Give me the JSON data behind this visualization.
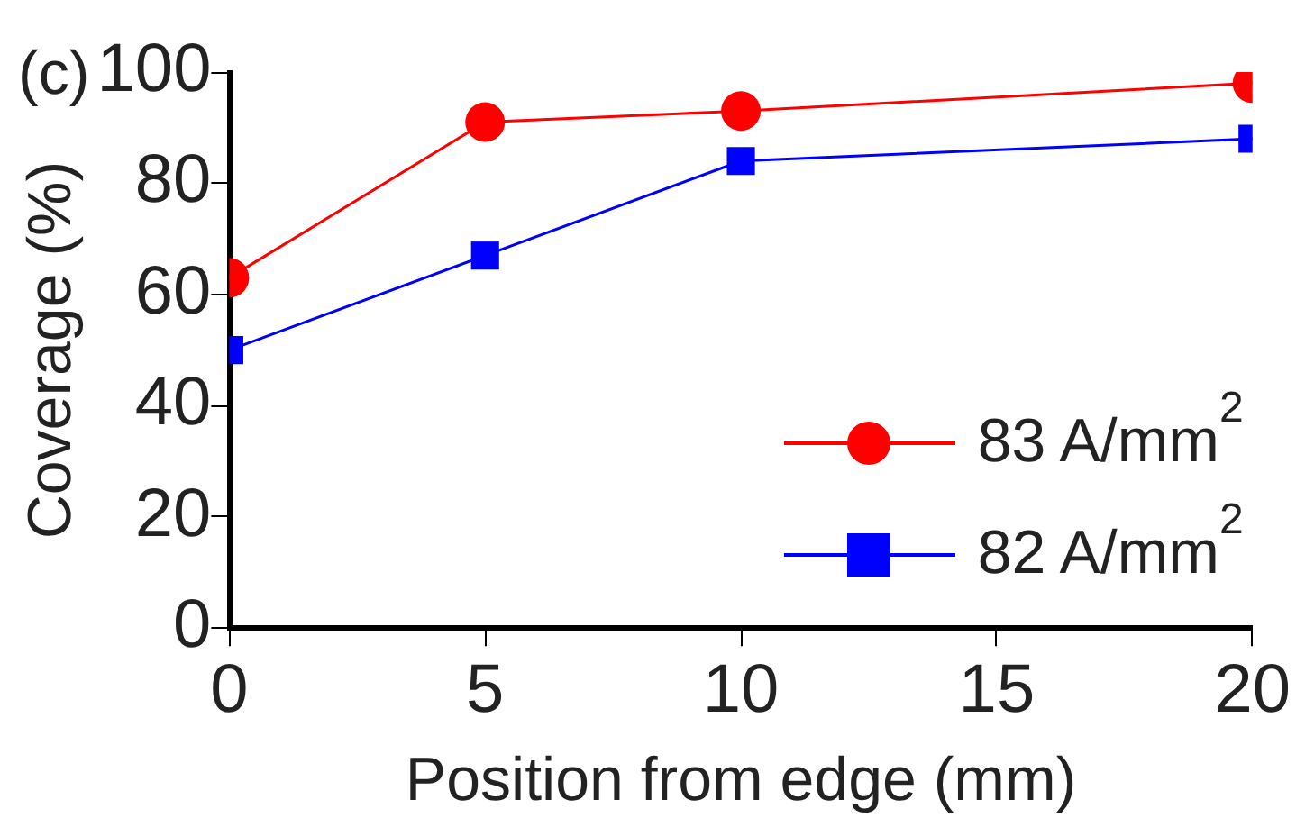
{
  "chart_data": {
    "type": "line",
    "xlabel": "Position from edge (mm)",
    "ylabel": "Coverage (%)",
    "annotations": [
      "(c)"
    ],
    "x": [
      0,
      5,
      10,
      20
    ],
    "xlim": [
      0,
      20
    ],
    "xticks": [
      0,
      5,
      10,
      15,
      20
    ],
    "ylim": [
      0,
      100
    ],
    "yticks": [
      0,
      20,
      40,
      60,
      80,
      100
    ],
    "series": [
      {
        "name": "83 A/mm$^{2}$",
        "color": "#ff0000",
        "marker": "circle",
        "values": [
          63,
          91,
          93,
          98
        ]
      },
      {
        "name": "82 A/mm$^{2}$",
        "color": "#0000ff",
        "marker": "square",
        "values": [
          50,
          67,
          84,
          88
        ]
      }
    ],
    "grid": false,
    "legend": "bottom right",
    "line_style": "solid"
  }
}
